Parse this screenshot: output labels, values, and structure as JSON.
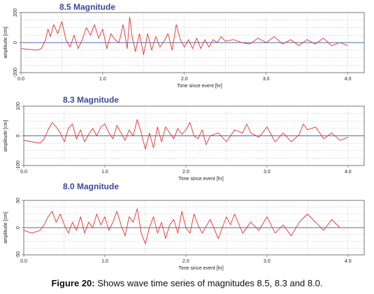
{
  "caption": {
    "label": "Figure 20:",
    "text": " Shows wave time series of magnitudes 8.5, 8.3 and 8.0."
  },
  "colors": {
    "title": "#3b4a9c",
    "series": "#e8302a",
    "zero_line": "#4a6bb0",
    "grid": "#bbbbbb",
    "frame": "#555555"
  },
  "chart_data": [
    {
      "type": "line",
      "title": "8.5 Magnitude",
      "xlabel": "Time since event [hr]",
      "ylabel": "amplitude [cm]",
      "xlim": [
        0,
        4.2
      ],
      "ylim": [
        -200,
        200
      ],
      "xticks": [
        "0.0",
        "1.0",
        "2.0",
        "3.0",
        "4.0"
      ],
      "yticks": [
        "200",
        "0",
        "-200"
      ],
      "ytick_values": [
        200,
        0,
        -200
      ],
      "grid": true,
      "series": [
        {
          "x": [
            0.0,
            0.1,
            0.2,
            0.25,
            0.3,
            0.33,
            0.36,
            0.4,
            0.45,
            0.5,
            0.55,
            0.6,
            0.65,
            0.7,
            0.75,
            0.8,
            0.85,
            0.9,
            0.95,
            1.0,
            1.05,
            1.1,
            1.15,
            1.2,
            1.25,
            1.3,
            1.33,
            1.36,
            1.4,
            1.45,
            1.5,
            1.55,
            1.6,
            1.65,
            1.7,
            1.75,
            1.8,
            1.85,
            1.9,
            1.95,
            2.0,
            2.05,
            2.1,
            2.15,
            2.2,
            2.25,
            2.3,
            2.35,
            2.4,
            2.45,
            2.5,
            2.6,
            2.7,
            2.8,
            2.9,
            3.0,
            3.1,
            3.2,
            3.3,
            3.4,
            3.5,
            3.6,
            3.7,
            3.8,
            3.9,
            4.0
          ],
          "y": [
            -40,
            -45,
            -50,
            -40,
            20,
            90,
            40,
            120,
            60,
            140,
            20,
            -30,
            50,
            -40,
            20,
            100,
            50,
            120,
            30,
            90,
            -40,
            60,
            20,
            0,
            120,
            -40,
            170,
            40,
            -60,
            60,
            -80,
            60,
            -50,
            40,
            -30,
            10,
            60,
            -50,
            120,
            20,
            -30,
            20,
            -40,
            30,
            -40,
            20,
            -30,
            20,
            0,
            40,
            10,
            20,
            0,
            -10,
            30,
            0,
            40,
            -10,
            20,
            -20,
            20,
            -10,
            30,
            -20,
            0,
            -20
          ]
        }
      ]
    },
    {
      "type": "line",
      "title": "8.3 Magnitude",
      "xlabel": "Time since event [hr]",
      "ylabel": "amplitude [cm]",
      "xlim": [
        0,
        4.2
      ],
      "ylim": [
        -100,
        100
      ],
      "xticks": [
        "0.0",
        "1.0",
        "2.0",
        "3.0",
        "4.0"
      ],
      "yticks": [
        "100",
        "0",
        "-100"
      ],
      "ytick_values": [
        100,
        0,
        -100
      ],
      "grid": true,
      "series": [
        {
          "x": [
            0.0,
            0.1,
            0.2,
            0.25,
            0.3,
            0.35,
            0.4,
            0.45,
            0.5,
            0.55,
            0.6,
            0.65,
            0.7,
            0.75,
            0.8,
            0.85,
            0.9,
            0.95,
            1.0,
            1.05,
            1.1,
            1.15,
            1.2,
            1.25,
            1.3,
            1.35,
            1.4,
            1.45,
            1.5,
            1.55,
            1.6,
            1.65,
            1.7,
            1.75,
            1.8,
            1.85,
            1.9,
            1.95,
            2.0,
            2.05,
            2.1,
            2.15,
            2.2,
            2.25,
            2.3,
            2.4,
            2.5,
            2.6,
            2.7,
            2.75,
            2.8,
            2.9,
            3.0,
            3.1,
            3.2,
            3.3,
            3.4,
            3.45,
            3.5,
            3.6,
            3.7,
            3.8,
            3.9,
            4.0
          ],
          "y": [
            -15,
            -20,
            -25,
            -10,
            20,
            45,
            30,
            10,
            -20,
            25,
            40,
            -10,
            20,
            -20,
            5,
            25,
            0,
            30,
            40,
            10,
            -10,
            35,
            10,
            -15,
            20,
            0,
            55,
            10,
            -45,
            10,
            -40,
            30,
            -20,
            30,
            10,
            -10,
            25,
            5,
            20,
            45,
            0,
            -10,
            20,
            -30,
            0,
            10,
            -20,
            20,
            10,
            40,
            10,
            -5,
            30,
            -20,
            10,
            -20,
            5,
            40,
            20,
            30,
            -10,
            10,
            -15,
            -5
          ]
        }
      ]
    },
    {
      "type": "line",
      "title": "8.0 Magnitude",
      "xlabel": "Time since event [hr]",
      "ylabel": "amplitude [cm]",
      "xlim": [
        0,
        4.2
      ],
      "ylim": [
        -50,
        50
      ],
      "xticks": [
        "0.0",
        "1.0",
        "2.0",
        "3.0",
        "4.0"
      ],
      "yticks": [
        "50",
        "0",
        "-50"
      ],
      "ytick_values": [
        50,
        0,
        -50
      ],
      "grid": true,
      "series": [
        {
          "x": [
            0.0,
            0.1,
            0.2,
            0.25,
            0.3,
            0.35,
            0.4,
            0.45,
            0.5,
            0.55,
            0.6,
            0.65,
            0.7,
            0.75,
            0.8,
            0.85,
            0.9,
            0.95,
            1.0,
            1.05,
            1.1,
            1.15,
            1.2,
            1.25,
            1.3,
            1.35,
            1.4,
            1.45,
            1.5,
            1.55,
            1.6,
            1.65,
            1.7,
            1.75,
            1.8,
            1.85,
            1.9,
            1.95,
            2.0,
            2.05,
            2.1,
            2.15,
            2.2,
            2.3,
            2.4,
            2.5,
            2.55,
            2.6,
            2.7,
            2.8,
            2.9,
            3.0,
            3.1,
            3.2,
            3.3,
            3.4,
            3.5,
            3.6,
            3.7,
            3.8,
            3.9,
            4.0
          ],
          "y": [
            -5,
            -10,
            -5,
            5,
            20,
            30,
            10,
            25,
            5,
            -10,
            10,
            -5,
            20,
            -10,
            10,
            0,
            25,
            5,
            20,
            -5,
            10,
            30,
            5,
            -15,
            20,
            10,
            35,
            -10,
            -30,
            0,
            20,
            -10,
            10,
            -20,
            5,
            15,
            -10,
            30,
            0,
            -10,
            25,
            5,
            -10,
            15,
            -20,
            20,
            5,
            25,
            -10,
            10,
            -5,
            20,
            -10,
            5,
            -15,
            10,
            25,
            10,
            -5,
            15,
            0,
            0
          ]
        }
      ]
    }
  ]
}
